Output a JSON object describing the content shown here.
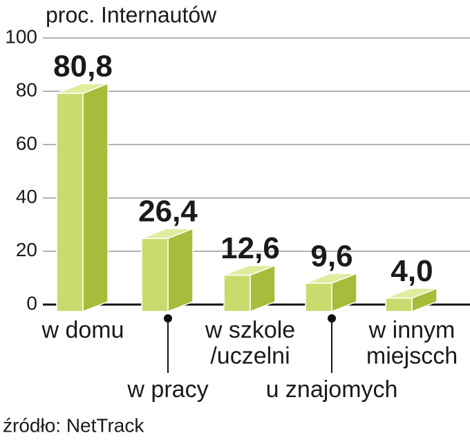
{
  "chart_data": {
    "type": "bar3d",
    "title": "proc. Internautów",
    "categories": [
      "w domu",
      "w pracy",
      "w szkole\n/uczelni",
      "u znajomych",
      "w innym\nmiejscch"
    ],
    "values": [
      80.8,
      26.4,
      12.6,
      9.6,
      4.0
    ],
    "value_labels": [
      "80,8",
      "26,4",
      "12,6",
      "9,6",
      "4,0"
    ],
    "colors": {
      "front": "#c8dc6e",
      "side": "#a5bd3a",
      "top": "#e0ec9e"
    },
    "ylim": [
      0,
      100
    ],
    "yticks": [
      0,
      20,
      40,
      60,
      80,
      100
    ],
    "grid": true,
    "source": "źródło: NetTrack"
  }
}
